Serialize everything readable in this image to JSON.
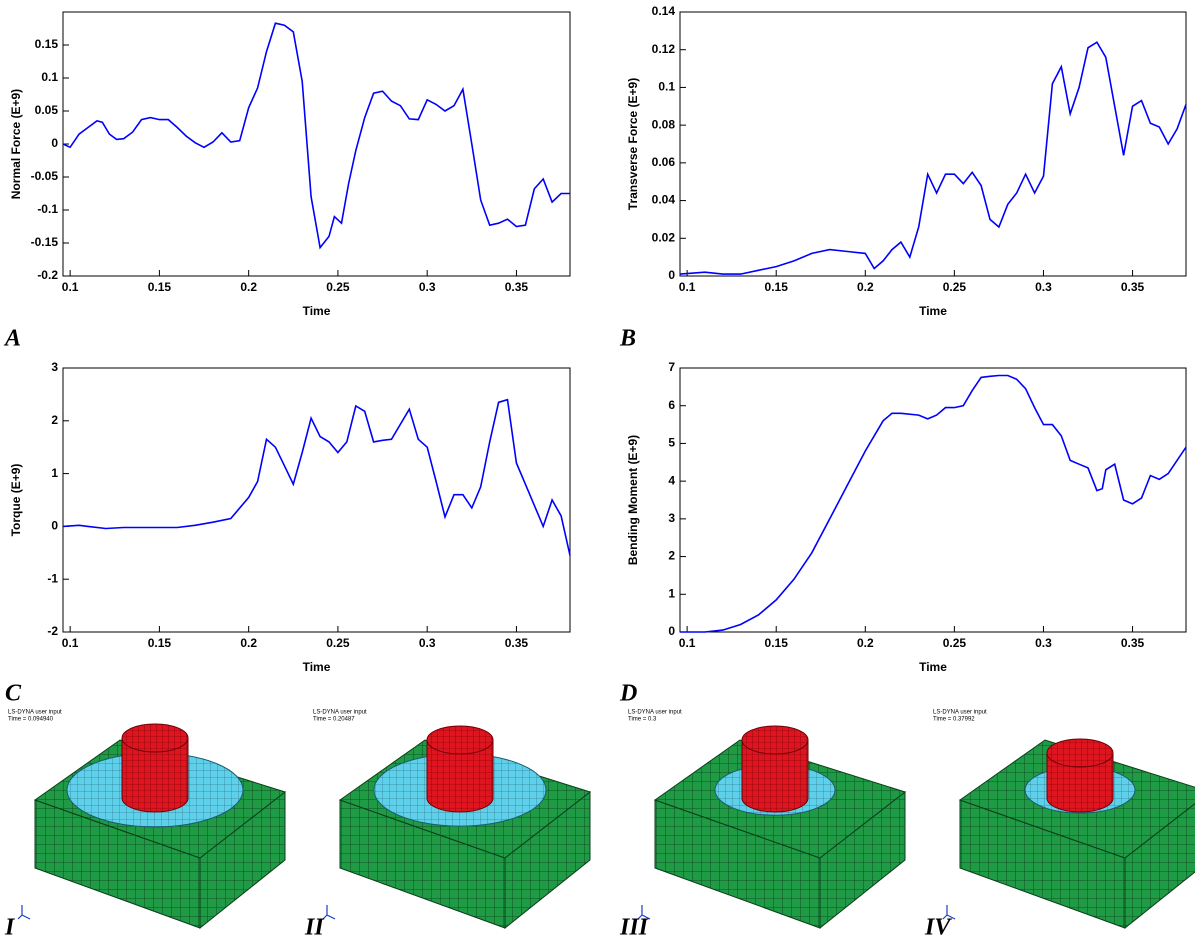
{
  "chart_data": [
    {
      "type": "line",
      "panel": "A",
      "xlabel": "Time",
      "ylabel": "Normal Force (E+9)",
      "color": "#0000ff",
      "x": [
        0.096,
        0.1,
        0.105,
        0.11,
        0.115,
        0.118,
        0.122,
        0.126,
        0.13,
        0.135,
        0.14,
        0.145,
        0.15,
        0.155,
        0.16,
        0.165,
        0.17,
        0.175,
        0.18,
        0.185,
        0.19,
        0.195,
        0.2,
        0.205,
        0.21,
        0.215,
        0.22,
        0.225,
        0.23,
        0.235,
        0.24,
        0.245,
        0.248,
        0.252,
        0.256,
        0.26,
        0.265,
        0.27,
        0.275,
        0.28,
        0.285,
        0.29,
        0.295,
        0.3,
        0.305,
        0.31,
        0.315,
        0.32,
        0.325,
        0.33,
        0.335,
        0.34,
        0.345,
        0.35,
        0.355,
        0.36,
        0.365,
        0.37,
        0.375,
        0.38
      ],
      "values": [
        0,
        -0.005,
        0.015,
        0.025,
        0.035,
        0.033,
        0.015,
        0.007,
        0.008,
        0.018,
        0.037,
        0.04,
        0.037,
        0.037,
        0.025,
        0.012,
        0.002,
        -0.005,
        0.003,
        0.017,
        0.003,
        0.005,
        0.055,
        0.085,
        0.14,
        0.183,
        0.18,
        0.17,
        0.095,
        -0.08,
        -0.157,
        -0.14,
        -0.11,
        -0.12,
        -0.06,
        -0.01,
        0.04,
        0.077,
        0.08,
        0.065,
        0.058,
        0.038,
        0.037,
        0.067,
        0.06,
        0.05,
        0.058,
        0.083,
        0.0,
        -0.085,
        -0.123,
        -0.12,
        -0.114,
        -0.125,
        -0.123,
        -0.068,
        -0.053,
        -0.088,
        -0.075,
        -0.075
      ],
      "xlim": [
        0.096,
        0.38
      ],
      "ylim": [
        -0.2,
        0.2
      ],
      "xticks": [
        0.1,
        0.15,
        0.2,
        0.25,
        0.3,
        0.35
      ],
      "yticks": [
        -0.2,
        -0.15,
        -0.1,
        -0.05,
        0,
        0.05,
        0.1,
        0.15
      ]
    },
    {
      "type": "line",
      "panel": "B",
      "xlabel": "Time",
      "ylabel": "Transverse Force (E+9)",
      "color": "#0000ff",
      "x": [
        0.096,
        0.11,
        0.12,
        0.13,
        0.14,
        0.15,
        0.16,
        0.17,
        0.18,
        0.19,
        0.2,
        0.205,
        0.21,
        0.215,
        0.22,
        0.225,
        0.23,
        0.235,
        0.24,
        0.245,
        0.25,
        0.255,
        0.26,
        0.265,
        0.27,
        0.275,
        0.28,
        0.285,
        0.29,
        0.295,
        0.3,
        0.305,
        0.31,
        0.315,
        0.32,
        0.325,
        0.33,
        0.335,
        0.34,
        0.345,
        0.35,
        0.355,
        0.36,
        0.365,
        0.37,
        0.375,
        0.38
      ],
      "values": [
        0.001,
        0.002,
        0.001,
        0.001,
        0.003,
        0.005,
        0.008,
        0.012,
        0.014,
        0.013,
        0.012,
        0.004,
        0.008,
        0.014,
        0.018,
        0.01,
        0.026,
        0.054,
        0.044,
        0.054,
        0.054,
        0.049,
        0.055,
        0.048,
        0.03,
        0.026,
        0.038,
        0.044,
        0.054,
        0.044,
        0.053,
        0.102,
        0.111,
        0.086,
        0.1,
        0.121,
        0.124,
        0.116,
        0.09,
        0.064,
        0.09,
        0.093,
        0.081,
        0.079,
        0.07,
        0.078,
        0.091
      ],
      "xlim": [
        0.096,
        0.38
      ],
      "ylim": [
        0,
        0.14
      ],
      "xticks": [
        0.1,
        0.15,
        0.2,
        0.25,
        0.3,
        0.35
      ],
      "yticks": [
        0,
        0.02,
        0.04,
        0.06,
        0.08,
        0.1,
        0.12,
        0.14
      ]
    },
    {
      "type": "line",
      "panel": "C",
      "xlabel": "Time",
      "ylabel": "Torque (E+9)",
      "color": "#0000ff",
      "x": [
        0.096,
        0.105,
        0.11,
        0.12,
        0.13,
        0.14,
        0.15,
        0.16,
        0.17,
        0.18,
        0.19,
        0.2,
        0.205,
        0.21,
        0.215,
        0.22,
        0.225,
        0.23,
        0.235,
        0.24,
        0.245,
        0.25,
        0.255,
        0.26,
        0.265,
        0.27,
        0.275,
        0.28,
        0.29,
        0.295,
        0.3,
        0.305,
        0.31,
        0.315,
        0.32,
        0.325,
        0.33,
        0.335,
        0.34,
        0.345,
        0.35,
        0.355,
        0.36,
        0.365,
        0.37,
        0.375,
        0.38
      ],
      "values": [
        0,
        0.02,
        0,
        -0.04,
        -0.02,
        -0.02,
        -0.02,
        -0.02,
        0.02,
        0.08,
        0.15,
        0.55,
        0.85,
        1.65,
        1.5,
        1.15,
        0.8,
        1.4,
        2.05,
        1.7,
        1.6,
        1.4,
        1.6,
        2.28,
        2.18,
        1.6,
        1.63,
        1.65,
        2.22,
        1.65,
        1.5,
        0.85,
        0.18,
        0.6,
        0.6,
        0.35,
        0.75,
        1.6,
        2.35,
        2.4,
        1.2,
        0.8,
        0.4,
        0,
        0.5,
        0.2,
        -0.55
      ],
      "xlim": [
        0.096,
        0.38
      ],
      "ylim": [
        -2,
        3
      ],
      "xticks": [
        0.1,
        0.15,
        0.2,
        0.25,
        0.3,
        0.35
      ],
      "yticks": [
        -2,
        -1,
        0,
        1,
        2,
        3
      ]
    },
    {
      "type": "line",
      "panel": "D",
      "xlabel": "Time",
      "ylabel": "Bending Moment (E+9)",
      "color": "#0000ff",
      "x": [
        0.096,
        0.11,
        0.12,
        0.13,
        0.14,
        0.15,
        0.16,
        0.17,
        0.18,
        0.19,
        0.2,
        0.21,
        0.215,
        0.22,
        0.23,
        0.235,
        0.24,
        0.245,
        0.25,
        0.255,
        0.26,
        0.265,
        0.27,
        0.275,
        0.28,
        0.285,
        0.29,
        0.295,
        0.3,
        0.305,
        0.31,
        0.315,
        0.32,
        0.325,
        0.33,
        0.333,
        0.335,
        0.34,
        0.345,
        0.35,
        0.355,
        0.36,
        0.365,
        0.37,
        0.38
      ],
      "values": [
        0,
        0,
        0.05,
        0.2,
        0.45,
        0.85,
        1.4,
        2.1,
        3,
        3.9,
        4.8,
        5.6,
        5.8,
        5.8,
        5.75,
        5.65,
        5.75,
        5.95,
        5.95,
        6,
        6.4,
        6.75,
        6.78,
        6.8,
        6.8,
        6.7,
        6.45,
        5.95,
        5.5,
        5.5,
        5.2,
        4.55,
        4.45,
        4.35,
        3.75,
        3.8,
        4.3,
        4.45,
        3.5,
        3.4,
        3.55,
        4.15,
        4.05,
        4.2,
        4.9
      ],
      "xlim": [
        0.096,
        0.38
      ],
      "ylim": [
        0,
        7
      ],
      "xticks": [
        0.1,
        0.15,
        0.2,
        0.25,
        0.3,
        0.35
      ],
      "yticks": [
        0,
        1,
        2,
        3,
        4,
        5,
        6,
        7
      ]
    }
  ],
  "simulations": [
    {
      "label": "I",
      "title": "LS-DYNA user input",
      "time": "Time =    0.094940"
    },
    {
      "label": "II",
      "title": "LS-DYNA user input",
      "time": "Time =    0.20487"
    },
    {
      "label": "III",
      "title": "LS-DYNA user input",
      "time": "Time =    0.3"
    },
    {
      "label": "IV",
      "title": "LS-DYNA user input",
      "time": "Time =    0.37992"
    }
  ]
}
